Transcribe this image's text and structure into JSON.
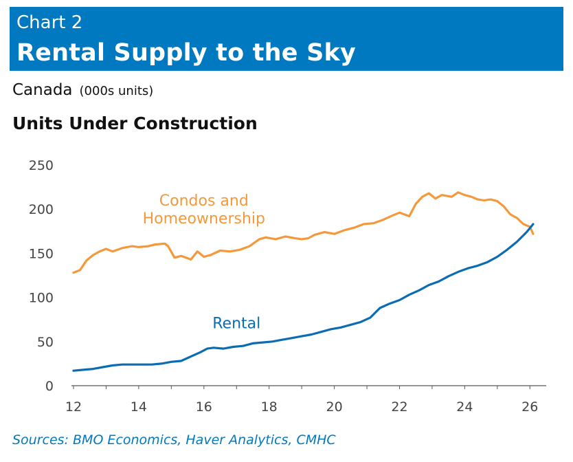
{
  "header": {
    "label": "Chart 2",
    "title": "Rental Supply to the Sky"
  },
  "subtitle": {
    "region": "Canada",
    "unit": "(000s units)"
  },
  "panel_title": "Units Under Construction",
  "source": "Sources: BMO Economics, Haver Analytics, CMHC",
  "colors": {
    "header_bg": "#0079c1",
    "rental": "#0a6db3",
    "condos": "#f3993b",
    "source_text": "#0079c1"
  },
  "chart_data": {
    "type": "line",
    "title": "Units Under Construction",
    "xlabel": "",
    "ylabel": "",
    "xlim": [
      12,
      26.5
    ],
    "ylim": [
      0,
      250
    ],
    "x_ticks": [
      "12",
      "14",
      "16",
      "18",
      "20",
      "22",
      "24",
      "26"
    ],
    "y_ticks": [
      "0",
      "50",
      "100",
      "150",
      "200",
      "250"
    ],
    "grid": false,
    "series": [
      {
        "name": "Condos and Homeownership",
        "label_lines": [
          "Condos and",
          "Homeownership"
        ],
        "color": "#f3993b",
        "x": [
          12.0,
          12.2,
          12.4,
          12.6,
          12.8,
          13.0,
          13.2,
          13.5,
          13.8,
          14.0,
          14.3,
          14.5,
          14.8,
          14.9,
          15.1,
          15.3,
          15.6,
          15.8,
          16.0,
          16.2,
          16.5,
          16.8,
          17.1,
          17.4,
          17.7,
          17.9,
          18.2,
          18.5,
          18.8,
          19.0,
          19.2,
          19.4,
          19.7,
          20.0,
          20.3,
          20.6,
          20.9,
          21.2,
          21.5,
          21.8,
          22.0,
          22.3,
          22.5,
          22.7,
          22.9,
          23.1,
          23.3,
          23.6,
          23.8,
          24.0,
          24.2,
          24.4,
          24.6,
          24.8,
          25.0,
          25.2,
          25.4,
          25.6,
          25.8,
          26.0,
          26.1
        ],
        "values": [
          128,
          131,
          142,
          148,
          152,
          155,
          152,
          156,
          158,
          157,
          158,
          160,
          161,
          158,
          145,
          147,
          143,
          152,
          146,
          148,
          153,
          152,
          154,
          158,
          166,
          168,
          166,
          169,
          167,
          166,
          167,
          171,
          174,
          172,
          176,
          179,
          183,
          184,
          188,
          193,
          196,
          192,
          206,
          214,
          218,
          212,
          216,
          214,
          219,
          216,
          214,
          211,
          210,
          211,
          209,
          203,
          194,
          190,
          183,
          180,
          172
        ]
      },
      {
        "name": "Rental",
        "label_lines": [
          "Rental"
        ],
        "color": "#0a6db3",
        "x": [
          12.0,
          12.3,
          12.6,
          12.9,
          13.2,
          13.5,
          13.8,
          14.1,
          14.4,
          14.7,
          15.0,
          15.3,
          15.6,
          15.9,
          16.1,
          16.3,
          16.6,
          16.9,
          17.2,
          17.5,
          17.8,
          18.1,
          18.4,
          18.7,
          19.0,
          19.3,
          19.6,
          19.9,
          20.2,
          20.5,
          20.8,
          21.1,
          21.4,
          21.7,
          22.0,
          22.3,
          22.6,
          22.9,
          23.2,
          23.5,
          23.8,
          24.1,
          24.4,
          24.7,
          25.0,
          25.3,
          25.6,
          25.9,
          26.1
        ],
        "values": [
          17,
          18,
          19,
          21,
          23,
          24,
          24,
          24,
          24,
          25,
          27,
          28,
          33,
          38,
          42,
          43,
          42,
          44,
          45,
          48,
          49,
          50,
          52,
          54,
          56,
          58,
          61,
          64,
          66,
          69,
          72,
          77,
          88,
          93,
          97,
          103,
          108,
          114,
          118,
          124,
          129,
          133,
          136,
          140,
          146,
          154,
          163,
          174,
          183
        ]
      }
    ]
  }
}
